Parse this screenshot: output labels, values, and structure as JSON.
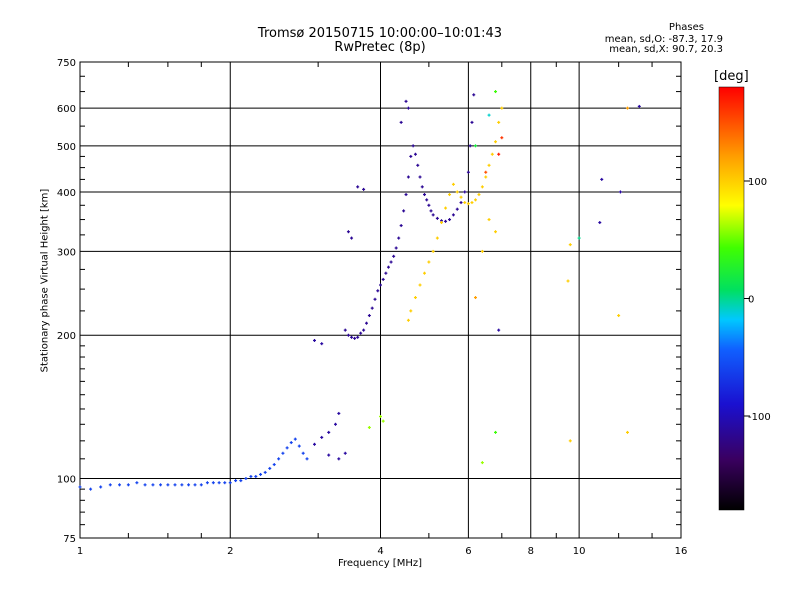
{
  "header": {
    "title_line1": "Tromsø 20150715 10:00:00–10:01:43",
    "title_line2": "RwPretec (8p)",
    "phases_title": "Phases",
    "phases_o": "mean, sd,O: -87.3, 17.9",
    "phases_x": "mean, sd,X:  90.7, 20.3"
  },
  "colorbar": {
    "label": "[deg]",
    "ticks": [
      "100",
      "0",
      "-100"
    ],
    "tick_values": [
      100,
      0,
      -100
    ],
    "range": [
      -180,
      180
    ]
  },
  "chart_data": {
    "type": "scatter",
    "title": "Tromsø 20150715 10:00:00–10:01:43",
    "subtitle": "RwPretec (8p)",
    "xlabel": "Frequency [MHz]",
    "ylabel": "Stationary phase Virtual Height [km]",
    "x_scale": "log2",
    "y_scale": "log",
    "xlim": [
      1,
      16
    ],
    "ylim": [
      75,
      750
    ],
    "x_ticks": [
      1,
      2,
      4,
      6,
      8,
      10,
      16
    ],
    "x_tick_labels": [
      "1",
      "2",
      "4",
      "6",
      "8",
      "10",
      "16"
    ],
    "y_ticks": [
      75,
      100,
      200,
      300,
      400,
      500,
      600,
      750
    ],
    "y_tick_labels": [
      "75",
      "100",
      "200",
      "300",
      "400",
      "500",
      "600",
      "750"
    ],
    "grid": true,
    "color_encoding": "phase (deg)",
    "series": [
      {
        "points": [
          [
            1.0,
            96,
            -60
          ],
          [
            1.05,
            95,
            -60
          ],
          [
            1.1,
            96,
            -60
          ],
          [
            1.15,
            97,
            -60
          ],
          [
            1.2,
            97,
            -60
          ],
          [
            1.25,
            97,
            -60
          ],
          [
            1.3,
            98,
            -60
          ],
          [
            1.35,
            97,
            -60
          ],
          [
            1.4,
            97,
            -60
          ],
          [
            1.45,
            97,
            -60
          ],
          [
            1.5,
            97,
            -60
          ],
          [
            1.55,
            97,
            -60
          ],
          [
            1.6,
            97,
            -60
          ],
          [
            1.65,
            97,
            -60
          ],
          [
            1.7,
            97,
            -60
          ],
          [
            1.75,
            97,
            -60
          ],
          [
            1.8,
            98,
            -60
          ],
          [
            1.85,
            98,
            -60
          ],
          [
            1.9,
            98,
            -60
          ],
          [
            1.95,
            98,
            -60
          ],
          [
            2.0,
            98,
            -60
          ],
          [
            2.05,
            99,
            -60
          ],
          [
            2.1,
            99,
            -60
          ],
          [
            2.15,
            100,
            -60
          ],
          [
            2.2,
            101,
            -60
          ],
          [
            2.25,
            101,
            -60
          ],
          [
            2.3,
            102,
            -60
          ],
          [
            2.35,
            103,
            -60
          ],
          [
            2.4,
            105,
            -60
          ],
          [
            2.45,
            107,
            -60
          ],
          [
            2.5,
            110,
            -60
          ],
          [
            2.55,
            113,
            -60
          ],
          [
            2.6,
            116,
            -60
          ],
          [
            2.65,
            119,
            -60
          ],
          [
            2.7,
            121,
            -60
          ],
          [
            2.75,
            117,
            -60
          ],
          [
            2.8,
            113,
            -60
          ],
          [
            2.85,
            110,
            -60
          ],
          [
            2.95,
            118,
            -110
          ],
          [
            3.05,
            122,
            -110
          ],
          [
            3.15,
            125,
            -110
          ],
          [
            3.25,
            130,
            -110
          ],
          [
            3.3,
            137,
            -110
          ],
          [
            3.15,
            112,
            -110
          ],
          [
            3.3,
            110,
            -110
          ],
          [
            3.4,
            113,
            -110
          ],
          [
            2.95,
            195,
            -110
          ],
          [
            3.05,
            192,
            -110
          ],
          [
            3.4,
            205,
            -115
          ],
          [
            3.45,
            200,
            -115
          ],
          [
            3.5,
            198,
            -115
          ],
          [
            3.55,
            197,
            -115
          ],
          [
            3.6,
            198,
            -115
          ],
          [
            3.65,
            202,
            -115
          ],
          [
            3.7,
            205,
            -115
          ],
          [
            3.75,
            212,
            -115
          ],
          [
            3.8,
            220,
            -115
          ],
          [
            3.85,
            228,
            -115
          ],
          [
            3.9,
            238,
            -115
          ],
          [
            3.95,
            248,
            -115
          ],
          [
            4.0,
            255,
            -115
          ],
          [
            4.05,
            262,
            -115
          ],
          [
            4.1,
            270,
            -115
          ],
          [
            4.15,
            278,
            -115
          ],
          [
            4.2,
            285,
            -115
          ],
          [
            4.25,
            293,
            -115
          ],
          [
            4.3,
            305,
            -115
          ],
          [
            4.35,
            320,
            -115
          ],
          [
            4.4,
            340,
            -115
          ],
          [
            4.45,
            365,
            -115
          ],
          [
            4.5,
            395,
            -115
          ],
          [
            4.55,
            430,
            -115
          ],
          [
            4.6,
            475,
            -115
          ],
          [
            4.65,
            500,
            -115
          ],
          [
            4.7,
            480,
            -115
          ],
          [
            4.75,
            455,
            -115
          ],
          [
            4.8,
            430,
            -115
          ],
          [
            4.85,
            410,
            -115
          ],
          [
            4.9,
            395,
            -115
          ],
          [
            4.95,
            385,
            -115
          ],
          [
            5.0,
            375,
            -115
          ],
          [
            5.05,
            365,
            -115
          ],
          [
            5.1,
            358,
            -115
          ],
          [
            5.2,
            352,
            -115
          ],
          [
            5.3,
            348,
            -115
          ],
          [
            5.4,
            347,
            -115
          ],
          [
            5.5,
            350,
            -115
          ],
          [
            5.6,
            358,
            -115
          ],
          [
            5.7,
            368,
            -115
          ],
          [
            5.8,
            380,
            -115
          ],
          [
            5.9,
            400,
            -115
          ],
          [
            6.0,
            440,
            -115
          ],
          [
            6.05,
            500,
            -115
          ],
          [
            6.1,
            560,
            -115
          ],
          [
            6.15,
            640,
            -115
          ],
          [
            3.45,
            330,
            -115
          ],
          [
            3.5,
            320,
            -115
          ],
          [
            3.6,
            410,
            -115
          ],
          [
            3.7,
            405,
            -115
          ],
          [
            4.5,
            620,
            -115
          ],
          [
            4.55,
            600,
            -115
          ],
          [
            4.4,
            560,
            -115
          ],
          [
            4.0,
            135,
            60
          ],
          [
            4.05,
            132,
            60
          ],
          [
            3.8,
            128,
            60
          ],
          [
            4.55,
            215,
            100
          ],
          [
            4.6,
            225,
            100
          ],
          [
            4.7,
            240,
            100
          ],
          [
            4.8,
            255,
            100
          ],
          [
            4.9,
            270,
            100
          ],
          [
            5.0,
            285,
            100
          ],
          [
            5.1,
            300,
            100
          ],
          [
            5.2,
            320,
            100
          ],
          [
            5.3,
            345,
            100
          ],
          [
            5.4,
            370,
            100
          ],
          [
            5.5,
            395,
            100
          ],
          [
            5.6,
            415,
            100
          ],
          [
            5.7,
            400,
            100
          ],
          [
            5.8,
            390,
            100
          ],
          [
            5.9,
            380,
            100
          ],
          [
            6.0,
            378,
            100
          ],
          [
            6.1,
            380,
            100
          ],
          [
            6.2,
            385,
            100
          ],
          [
            6.3,
            395,
            100
          ],
          [
            6.4,
            410,
            100
          ],
          [
            6.5,
            430,
            100
          ],
          [
            6.6,
            455,
            100
          ],
          [
            6.7,
            480,
            100
          ],
          [
            6.8,
            510,
            100
          ],
          [
            6.9,
            560,
            100
          ],
          [
            7.0,
            600,
            100
          ],
          [
            6.4,
            300,
            100
          ],
          [
            6.6,
            350,
            100
          ],
          [
            6.8,
            330,
            100
          ],
          [
            7.0,
            520,
            160
          ],
          [
            6.9,
            480,
            170
          ],
          [
            6.5,
            440,
            150
          ],
          [
            6.8,
            650,
            40
          ],
          [
            6.6,
            580,
            -10
          ],
          [
            6.2,
            500,
            20
          ],
          [
            6.4,
            108,
            60
          ],
          [
            6.8,
            125,
            40
          ],
          [
            6.2,
            240,
            120
          ],
          [
            6.9,
            205,
            -110
          ],
          [
            9.5,
            260,
            100
          ],
          [
            9.6,
            310,
            100
          ],
          [
            10.0,
            320,
            0
          ],
          [
            11.0,
            345,
            -110
          ],
          [
            11.1,
            425,
            -110
          ],
          [
            12.0,
            220,
            100
          ],
          [
            12.5,
            600,
            120
          ],
          [
            12.5,
            125,
            100
          ],
          [
            12.1,
            400,
            -110
          ],
          [
            13.2,
            605,
            -110
          ],
          [
            9.6,
            120,
            100
          ]
        ]
      }
    ]
  }
}
